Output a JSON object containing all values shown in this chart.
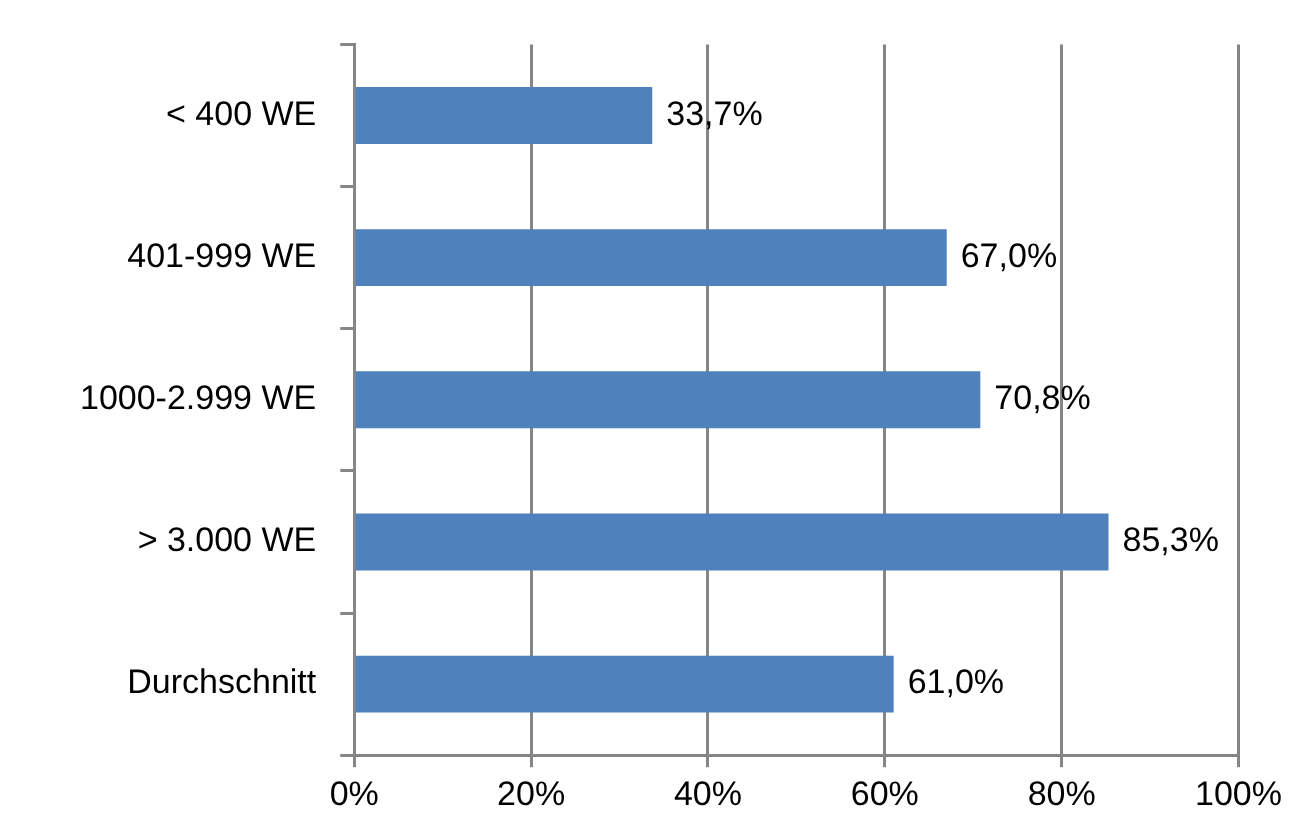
{
  "chart_data": {
    "type": "bar",
    "orientation": "horizontal",
    "categories": [
      "< 400 WE",
      "401-999 WE",
      "1000-2.999 WE",
      "> 3.000 WE",
      "Durchschnitt"
    ],
    "values": [
      33.7,
      67.0,
      70.8,
      85.3,
      61.0
    ],
    "value_labels": [
      "33,7%",
      "67,0%",
      "70,8%",
      "85,3%",
      "61,0%"
    ],
    "color": "#4f81bd",
    "xlim": [
      0,
      100
    ],
    "xticks": [
      {
        "value": 0,
        "label": "0%"
      },
      {
        "value": 20,
        "label": "20%"
      },
      {
        "value": 40,
        "label": "40%"
      },
      {
        "value": 60,
        "label": "60%"
      },
      {
        "value": 80,
        "label": "80%"
      },
      {
        "value": 100,
        "label": "100%"
      }
    ],
    "grid": "x",
    "legend": false
  }
}
